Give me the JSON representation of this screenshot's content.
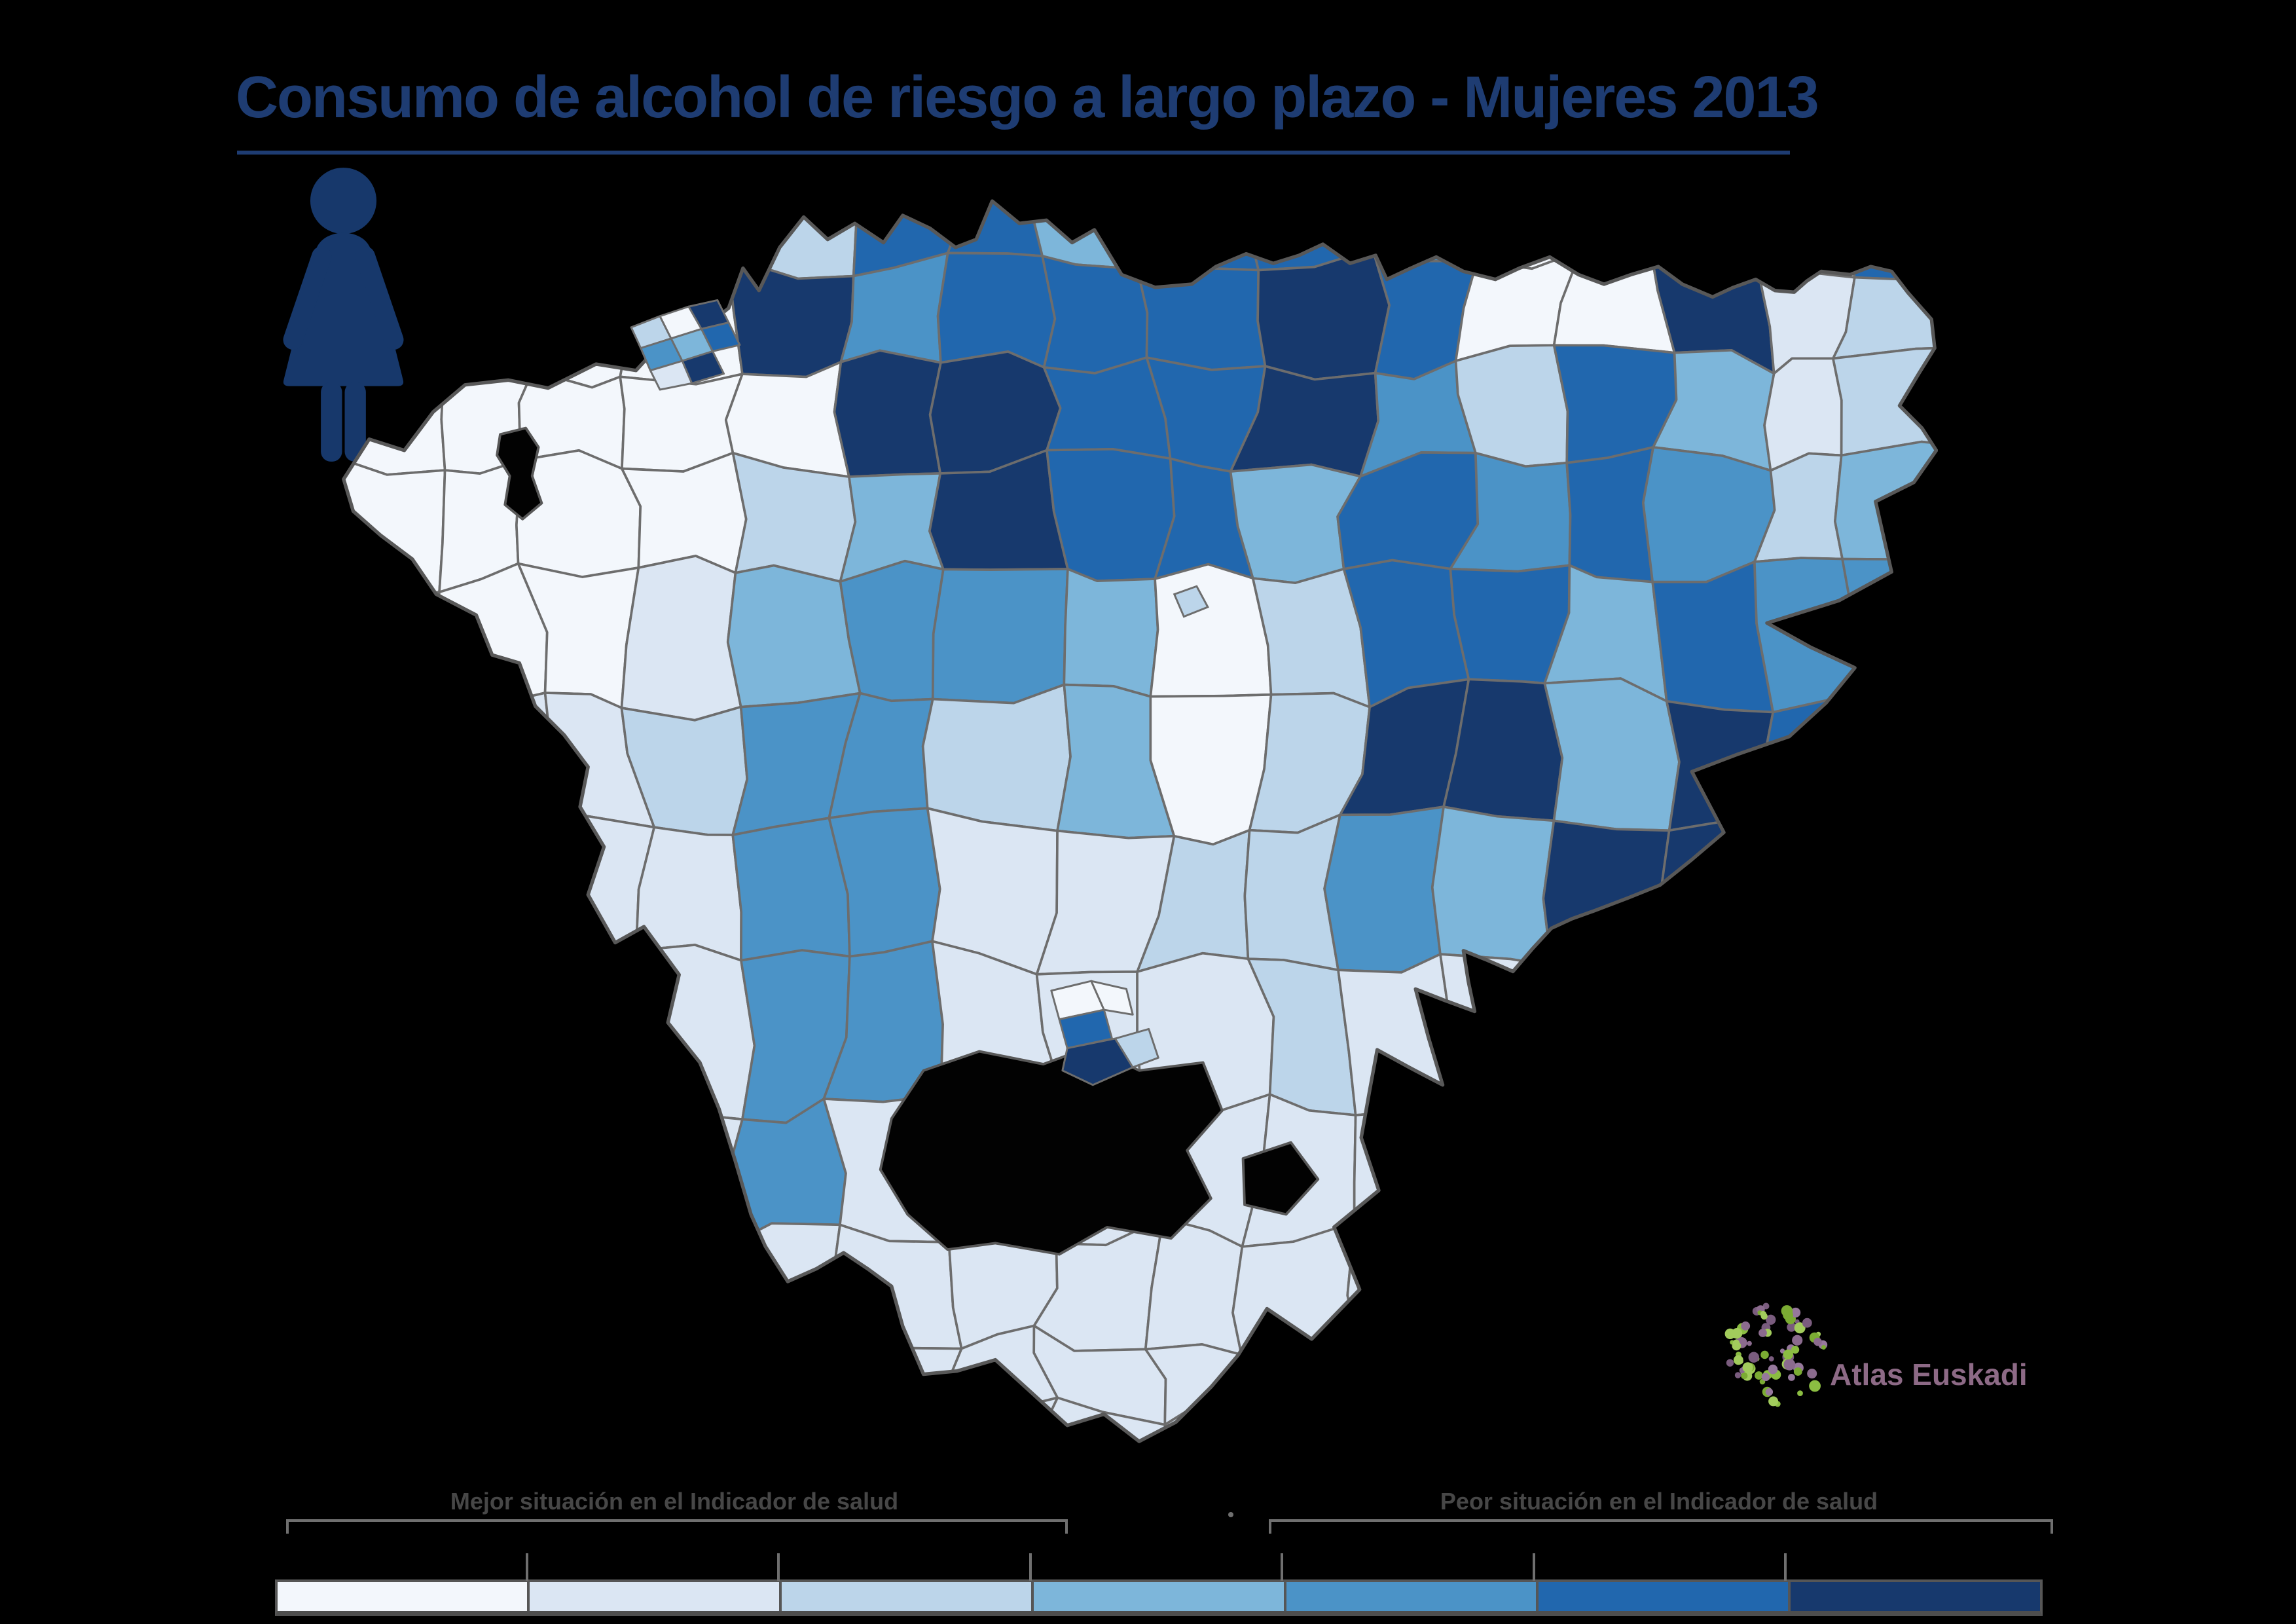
{
  "title": "Consumo de alcohol de riesgo a largo plazo - Mujeres 2013",
  "title_color": "#1e3c72",
  "palette": [
    "#f3f7fc",
    "#dbe6f3",
    "#bcd5ea",
    "#7db6da",
    "#4b93c7",
    "#2167ae",
    "#17396d"
  ],
  "legend": {
    "better_label": "Mejor situación en el Indicador de salud",
    "worse_label": "Peor situación en el Indicador de salud",
    "frame_color": "#565656",
    "tick_color": "#6f6f6f"
  },
  "logo": {
    "label": "Atlas Euskadi",
    "text_color": "#8d6a86",
    "green_dot_colors": [
      "#8bbd42",
      "#a2cc5c",
      "#7bab33"
    ],
    "purple_dot_colors": [
      "#8b6b8e",
      "#7a5c7e",
      "#96789c"
    ]
  },
  "female_figure_color": "#17386b",
  "map": {
    "background": "#000000",
    "cell_border_color": "#6d6d6d",
    "outline_color": "#585858",
    "enclave_color": "#020202",
    "grid": [
      [
        0,
        0,
        0,
        2,
        2,
        5,
        5,
        3,
        5,
        5,
        4,
        0,
        3,
        5,
        0,
        5
      ],
      [
        0,
        0,
        0,
        0,
        6,
        4,
        5,
        5,
        5,
        6,
        5,
        0,
        0,
        6,
        1,
        2
      ],
      [
        0,
        0,
        0,
        0,
        0,
        6,
        6,
        5,
        5,
        6,
        4,
        2,
        5,
        3,
        1,
        2
      ],
      [
        0,
        0,
        0,
        0,
        2,
        3,
        6,
        5,
        5,
        3,
        5,
        4,
        5,
        4,
        2,
        3
      ],
      [
        0,
        0,
        0,
        1,
        3,
        4,
        4,
        3,
        0,
        2,
        5,
        5,
        3,
        5,
        4,
        4
      ],
      [
        1,
        1,
        1,
        2,
        4,
        4,
        2,
        3,
        0,
        2,
        6,
        6,
        3,
        6,
        5,
        4
      ],
      [
        1,
        1,
        1,
        1,
        4,
        4,
        1,
        1,
        2,
        2,
        4,
        3,
        6,
        6,
        3,
        5
      ],
      [
        1,
        1,
        1,
        1,
        4,
        4,
        1,
        1,
        1,
        2,
        1,
        1,
        2,
        2,
        1,
        1
      ],
      [
        1,
        1,
        1,
        1,
        4,
        1,
        1,
        1,
        1,
        1,
        1,
        1,
        1,
        2,
        1,
        1
      ],
      [
        1,
        1,
        1,
        1,
        1,
        1,
        1,
        1,
        1,
        1,
        1,
        1,
        1,
        1,
        1,
        1
      ],
      [
        1,
        1,
        1,
        1,
        1,
        1,
        1,
        1,
        1,
        1,
        1,
        1,
        1,
        1,
        1,
        1
      ],
      [
        1,
        1,
        1,
        1,
        1,
        1,
        1,
        1,
        1,
        1,
        1,
        1,
        1,
        1,
        1,
        1
      ]
    ],
    "overlays": {
      "bilbao_cluster_classes": [
        2,
        0,
        6,
        4,
        3,
        5,
        1,
        6
      ],
      "vitoria_cluster_classes": [
        0,
        0,
        5,
        6,
        2
      ],
      "inner_enclave_class": 2
    }
  }
}
